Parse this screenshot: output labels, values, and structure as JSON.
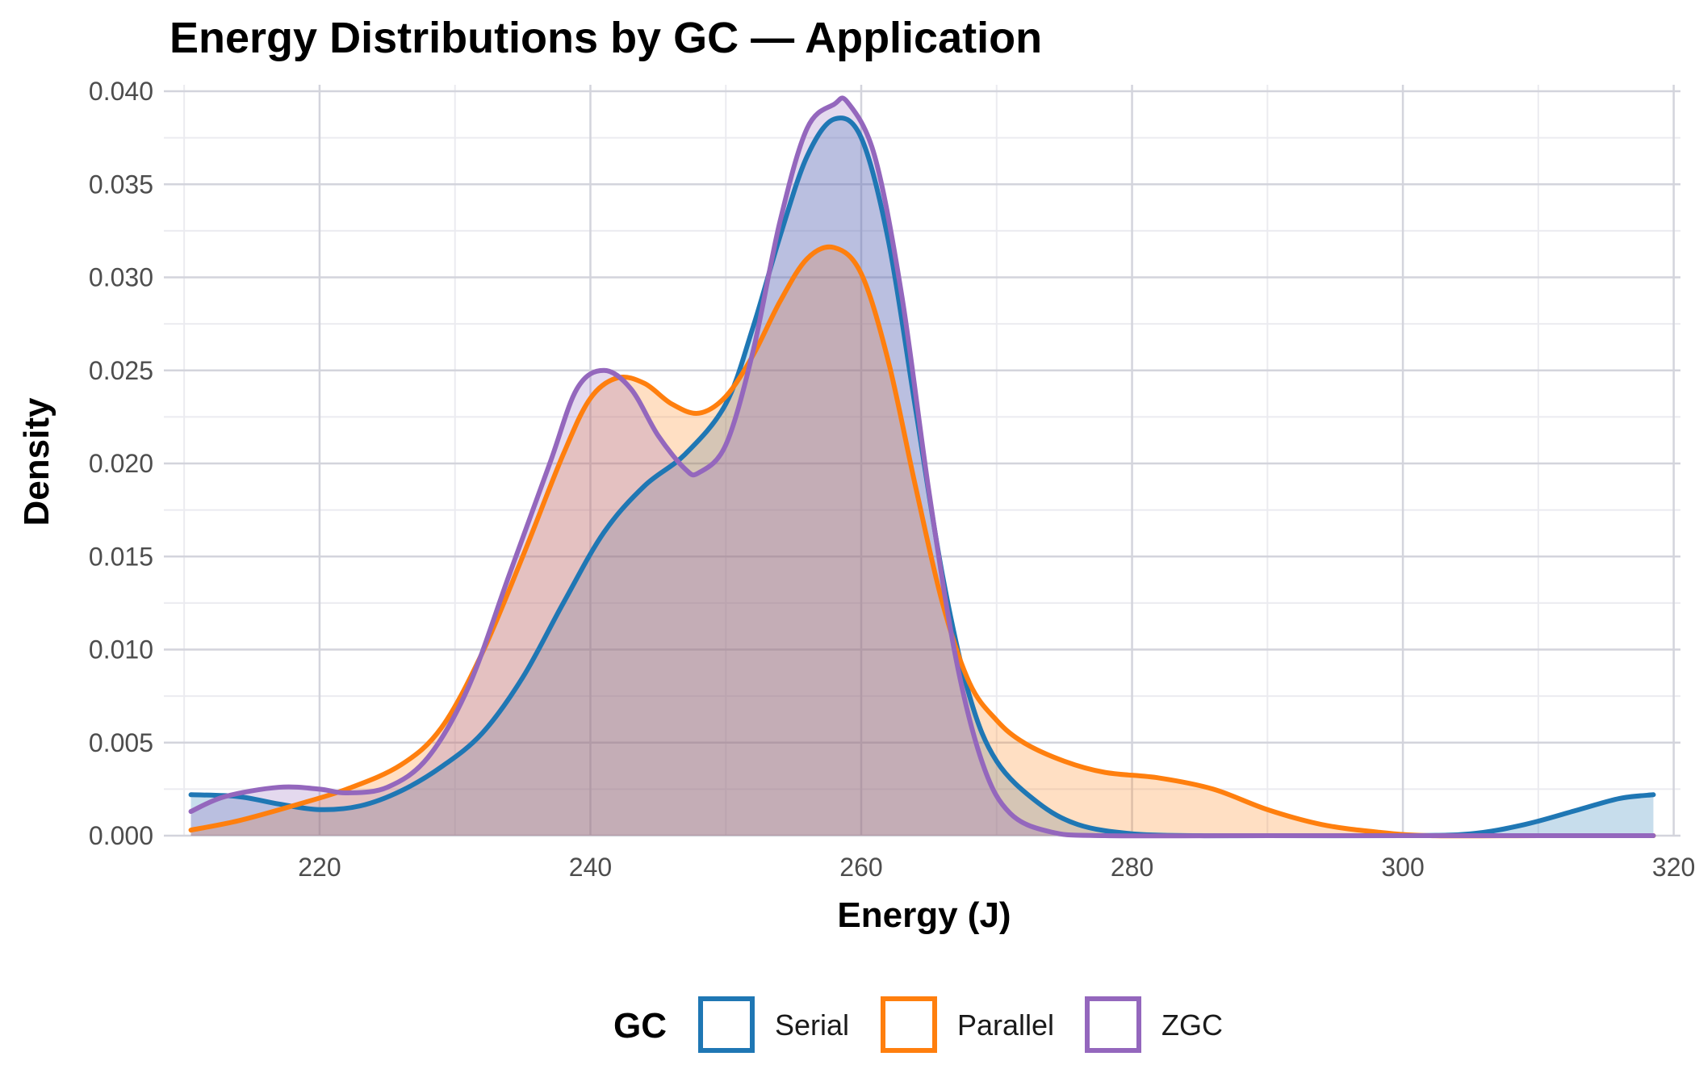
{
  "chart_data": {
    "type": "area",
    "title": "Energy Distributions by GC — Application",
    "xlabel": "Energy (J)",
    "ylabel": "Density",
    "xlim": [
      208.5,
      320.5
    ],
    "ylim": [
      0,
      0.04
    ],
    "x_ticks": [
      220,
      240,
      260,
      280,
      300,
      320
    ],
    "x_tick_labels": [
      "220",
      "240",
      "260",
      "280",
      "300",
      "320"
    ],
    "y_ticks": [
      0,
      0.005,
      0.01,
      0.015,
      0.02,
      0.025,
      0.03,
      0.035,
      0.04
    ],
    "y_tick_labels": [
      "0.000",
      "0.005",
      "0.010",
      "0.015",
      "0.020",
      "0.025",
      "0.030",
      "0.035",
      "0.040"
    ],
    "grid": true,
    "legend": {
      "title": "GC",
      "position": "bottom"
    },
    "series": [
      {
        "name": "Serial",
        "color": "#1f77b4",
        "fill": "#1f77b4",
        "points": [
          [
            210.5,
            0.0022
          ],
          [
            214,
            0.0021
          ],
          [
            217,
            0.0017
          ],
          [
            220,
            0.0014
          ],
          [
            223,
            0.0016
          ],
          [
            226,
            0.0024
          ],
          [
            229,
            0.0037
          ],
          [
            232,
            0.0055
          ],
          [
            235,
            0.0085
          ],
          [
            238,
            0.0125
          ],
          [
            241,
            0.0163
          ],
          [
            244,
            0.0188
          ],
          [
            247,
            0.0205
          ],
          [
            250,
            0.0232
          ],
          [
            252,
            0.0273
          ],
          [
            254,
            0.0322
          ],
          [
            256,
            0.0365
          ],
          [
            258,
            0.0385
          ],
          [
            260,
            0.0375
          ],
          [
            262,
            0.032
          ],
          [
            264,
            0.023
          ],
          [
            266,
            0.014
          ],
          [
            268,
            0.0075
          ],
          [
            270,
            0.004
          ],
          [
            273,
            0.0018
          ],
          [
            276,
            0.0006
          ],
          [
            280,
            0.0001
          ],
          [
            285,
            0.0
          ],
          [
            290,
            0.0
          ],
          [
            300,
            0.0
          ],
          [
            305,
            0.0001
          ],
          [
            309,
            0.0006
          ],
          [
            313,
            0.0014
          ],
          [
            316,
            0.002
          ],
          [
            318.5,
            0.0022
          ]
        ]
      },
      {
        "name": "Parallel",
        "color": "#ff7f0e",
        "fill": "#ff7f0e",
        "points": [
          [
            210.5,
            0.0003
          ],
          [
            214,
            0.0008
          ],
          [
            218,
            0.0016
          ],
          [
            222,
            0.0025
          ],
          [
            226,
            0.0038
          ],
          [
            229,
            0.0058
          ],
          [
            232,
            0.0098
          ],
          [
            235,
            0.015
          ],
          [
            238,
            0.0205
          ],
          [
            240,
            0.0235
          ],
          [
            242,
            0.0246
          ],
          [
            244,
            0.0243
          ],
          [
            246,
            0.0232
          ],
          [
            248,
            0.0227
          ],
          [
            250,
            0.0236
          ],
          [
            252,
            0.0258
          ],
          [
            254,
            0.0287
          ],
          [
            256,
            0.031
          ],
          [
            258,
            0.0316
          ],
          [
            260,
            0.0302
          ],
          [
            262,
            0.0255
          ],
          [
            264,
            0.0188
          ],
          [
            266,
            0.0125
          ],
          [
            268,
            0.0082
          ],
          [
            270,
            0.0062
          ],
          [
            272,
            0.005
          ],
          [
            275,
            0.004
          ],
          [
            278,
            0.0034
          ],
          [
            282,
            0.0031
          ],
          [
            286,
            0.0025
          ],
          [
            290,
            0.0014
          ],
          [
            294,
            0.0006
          ],
          [
            298,
            0.0002
          ],
          [
            302,
            0.0
          ],
          [
            310,
            0.0
          ],
          [
            318.5,
            0.0
          ]
        ]
      },
      {
        "name": "ZGC",
        "color": "#9467bd",
        "fill": "#9467bd",
        "points": [
          [
            210.5,
            0.0013
          ],
          [
            213,
            0.0021
          ],
          [
            217,
            0.0026
          ],
          [
            220,
            0.0025
          ],
          [
            222,
            0.0023
          ],
          [
            225,
            0.0026
          ],
          [
            228,
            0.0042
          ],
          [
            231,
            0.008
          ],
          [
            234,
            0.014
          ],
          [
            237,
            0.02
          ],
          [
            239,
            0.024
          ],
          [
            241,
            0.025
          ],
          [
            243,
            0.024
          ],
          [
            245,
            0.0215
          ],
          [
            247,
            0.0197
          ],
          [
            248,
            0.0195
          ],
          [
            250,
            0.021
          ],
          [
            252,
            0.026
          ],
          [
            254,
            0.033
          ],
          [
            256,
            0.038
          ],
          [
            258,
            0.0393
          ],
          [
            259,
            0.0394
          ],
          [
            261,
            0.0365
          ],
          [
            263,
            0.029
          ],
          [
            265,
            0.0185
          ],
          [
            267,
            0.0095
          ],
          [
            269,
            0.0038
          ],
          [
            271,
            0.0012
          ],
          [
            274,
            0.0002
          ],
          [
            278,
            0.0
          ],
          [
            290,
            0.0
          ],
          [
            318.5,
            0.0
          ]
        ]
      }
    ]
  }
}
